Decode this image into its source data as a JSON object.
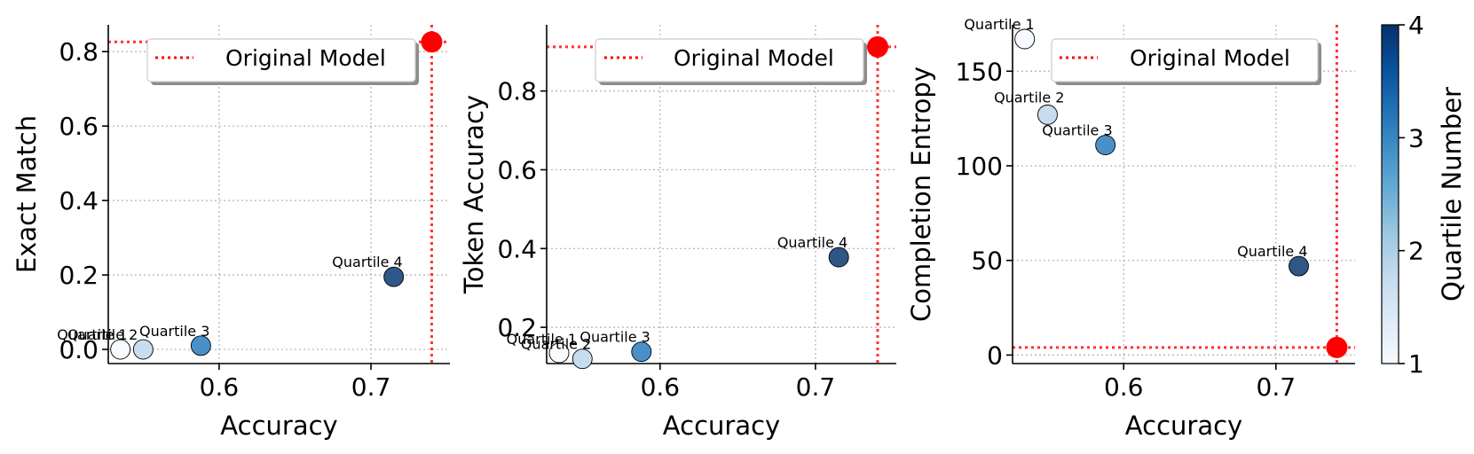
{
  "chart_data": [
    {
      "type": "scatter",
      "title": "",
      "xlabel": "Accuracy",
      "ylabel": "Exact Match",
      "xlim": [
        0.527,
        0.752
      ],
      "ylim": [
        -0.038,
        0.872
      ],
      "xticks": [
        {
          "v": 0.6,
          "label": "0.6"
        },
        {
          "v": 0.7,
          "label": "0.7"
        }
      ],
      "yticks": [
        {
          "v": 0.0,
          "label": "0.0"
        },
        {
          "v": 0.2,
          "label": "0.2"
        },
        {
          "v": 0.4,
          "label": "0.4"
        },
        {
          "v": 0.6,
          "label": "0.6"
        },
        {
          "v": 0.8,
          "label": "0.8"
        }
      ],
      "grid": true,
      "legend": {
        "position": "top-right",
        "entries": [
          "Original Model"
        ]
      },
      "points": [
        {
          "label": "Quartile 1",
          "quartile": 1,
          "x": 0.535,
          "y": 0.0
        },
        {
          "label": "Quartile 2",
          "quartile": 2,
          "x": 0.55,
          "y": 0.0
        },
        {
          "label": "Quartile 3",
          "quartile": 3,
          "x": 0.588,
          "y": 0.01
        },
        {
          "label": "Quartile 4",
          "quartile": 4,
          "x": 0.715,
          "y": 0.195
        }
      ],
      "original_model": {
        "name": "Original Model",
        "x": 0.74,
        "y": 0.826
      }
    },
    {
      "type": "scatter",
      "title": "",
      "xlabel": "Accuracy",
      "ylabel": "Token Accuracy",
      "xlim": [
        0.527,
        0.752
      ],
      "ylim": [
        0.108,
        0.968
      ],
      "xticks": [
        {
          "v": 0.6,
          "label": "0.6"
        },
        {
          "v": 0.7,
          "label": "0.7"
        }
      ],
      "yticks": [
        {
          "v": 0.2,
          "label": "0.2"
        },
        {
          "v": 0.4,
          "label": "0.4"
        },
        {
          "v": 0.6,
          "label": "0.6"
        },
        {
          "v": 0.8,
          "label": "0.8"
        }
      ],
      "grid": true,
      "legend": {
        "position": "top-right",
        "entries": [
          "Original Model"
        ]
      },
      "points": [
        {
          "label": "Quartile 1",
          "quartile": 1,
          "x": 0.535,
          "y": 0.135
        },
        {
          "label": "Quartile 2",
          "quartile": 2,
          "x": 0.55,
          "y": 0.12
        },
        {
          "label": "Quartile 3",
          "quartile": 3,
          "x": 0.588,
          "y": 0.138
        },
        {
          "label": "Quartile 4",
          "quartile": 4,
          "x": 0.715,
          "y": 0.378
        }
      ],
      "original_model": {
        "name": "Original Model",
        "x": 0.74,
        "y": 0.912
      }
    },
    {
      "type": "scatter",
      "title": "",
      "xlabel": "Accuracy",
      "ylabel": "Completion Entropy",
      "xlim": [
        0.527,
        0.752
      ],
      "ylim": [
        -4.5,
        174.5
      ],
      "xticks": [
        {
          "v": 0.6,
          "label": "0.6"
        },
        {
          "v": 0.7,
          "label": "0.7"
        }
      ],
      "yticks": [
        {
          "v": 0,
          "label": "0"
        },
        {
          "v": 50,
          "label": "50"
        },
        {
          "v": 100,
          "label": "100"
        },
        {
          "v": 150,
          "label": "150"
        }
      ],
      "grid": true,
      "legend": {
        "position": "top-right",
        "entries": [
          "Original Model"
        ]
      },
      "points": [
        {
          "label": "Quartile 1",
          "quartile": 1,
          "x": 0.535,
          "y": 167
        },
        {
          "label": "Quartile 2",
          "quartile": 2,
          "x": 0.55,
          "y": 127
        },
        {
          "label": "Quartile 3",
          "quartile": 3,
          "x": 0.588,
          "y": 111
        },
        {
          "label": "Quartile 4",
          "quartile": 4,
          "x": 0.715,
          "y": 47
        }
      ],
      "original_model": {
        "name": "Original Model",
        "x": 0.74,
        "y": 4
      }
    }
  ],
  "colorbar": {
    "label": "Quartile Number",
    "min": 1,
    "max": 4,
    "ticks": [
      {
        "v": 1,
        "label": "1"
      },
      {
        "v": 2,
        "label": "2"
      },
      {
        "v": 3,
        "label": "3"
      },
      {
        "v": 4,
        "label": "4"
      }
    ],
    "colormap": [
      "#f7fbff",
      "#deebf7",
      "#c6dbef",
      "#9ecae1",
      "#6baed6",
      "#4292c6",
      "#2171b5",
      "#08519c",
      "#08306b"
    ]
  },
  "colors": {
    "original_model": "#ff0000",
    "quartile_1": "#f7fbff",
    "quartile_2": "#c8dcf0",
    "quartile_3": "#4a90c8",
    "quartile_4": "#2e5787"
  }
}
